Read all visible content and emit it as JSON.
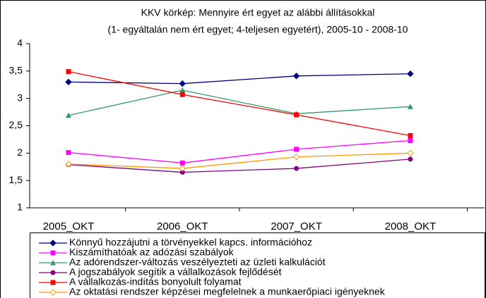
{
  "chart_data": {
    "type": "line",
    "title": "KKV körkép: Mennyire ért egyet az alábbi állításokkal",
    "subtitle": "(1- egyáltalán nem ért egyet; 4-teljesen egyetért), 2005-10 - 2008-10",
    "categories": [
      "2005_OKT",
      "2006_OKT",
      "2007_OKT",
      "2008_OKT"
    ],
    "ylim": [
      1,
      4
    ],
    "yticks": [
      1,
      {
        "value": 1.5,
        "label": "1,5"
      },
      2,
      {
        "value": 2.5,
        "label": "2,5"
      },
      3,
      {
        "value": 3.5,
        "label": "3,5"
      },
      4
    ],
    "legend": "bottom",
    "series": [
      {
        "name": "Könnyű hozzájutni a törvényekkel kapcs. információhoz",
        "color": "#000080",
        "marker": "diamond",
        "values": [
          3.3,
          3.27,
          3.41,
          3.45
        ]
      },
      {
        "name": "Kiszámíthatóak az adózási szabályok",
        "color": "#FF00FF",
        "marker": "square",
        "values": [
          2.01,
          1.82,
          2.07,
          2.23
        ]
      },
      {
        "name": "Az adórendszer-változás veszélyezteti az üzleti kalkulációt",
        "color": "#339966",
        "marker": "triangle",
        "values": [
          2.69,
          3.15,
          2.72,
          2.85
        ]
      },
      {
        "name": "A jogszabályok segítik a vállalkozások fejlődését",
        "color": "#800080",
        "marker": "circle",
        "values": [
          1.79,
          1.65,
          1.72,
          1.89
        ]
      },
      {
        "name": "A vállalkozás-indítás bonyolult folyamat",
        "color": "#FF0000",
        "marker": "square",
        "values": [
          3.49,
          3.07,
          2.7,
          2.32
        ]
      },
      {
        "name": "Az oktatási rendszer képzései megfelelnek a munkaerőpiaci igényeknek",
        "color": "#FF9900",
        "marker": "open-diamond",
        "values": [
          1.8,
          1.72,
          1.93,
          2.0
        ]
      }
    ]
  }
}
